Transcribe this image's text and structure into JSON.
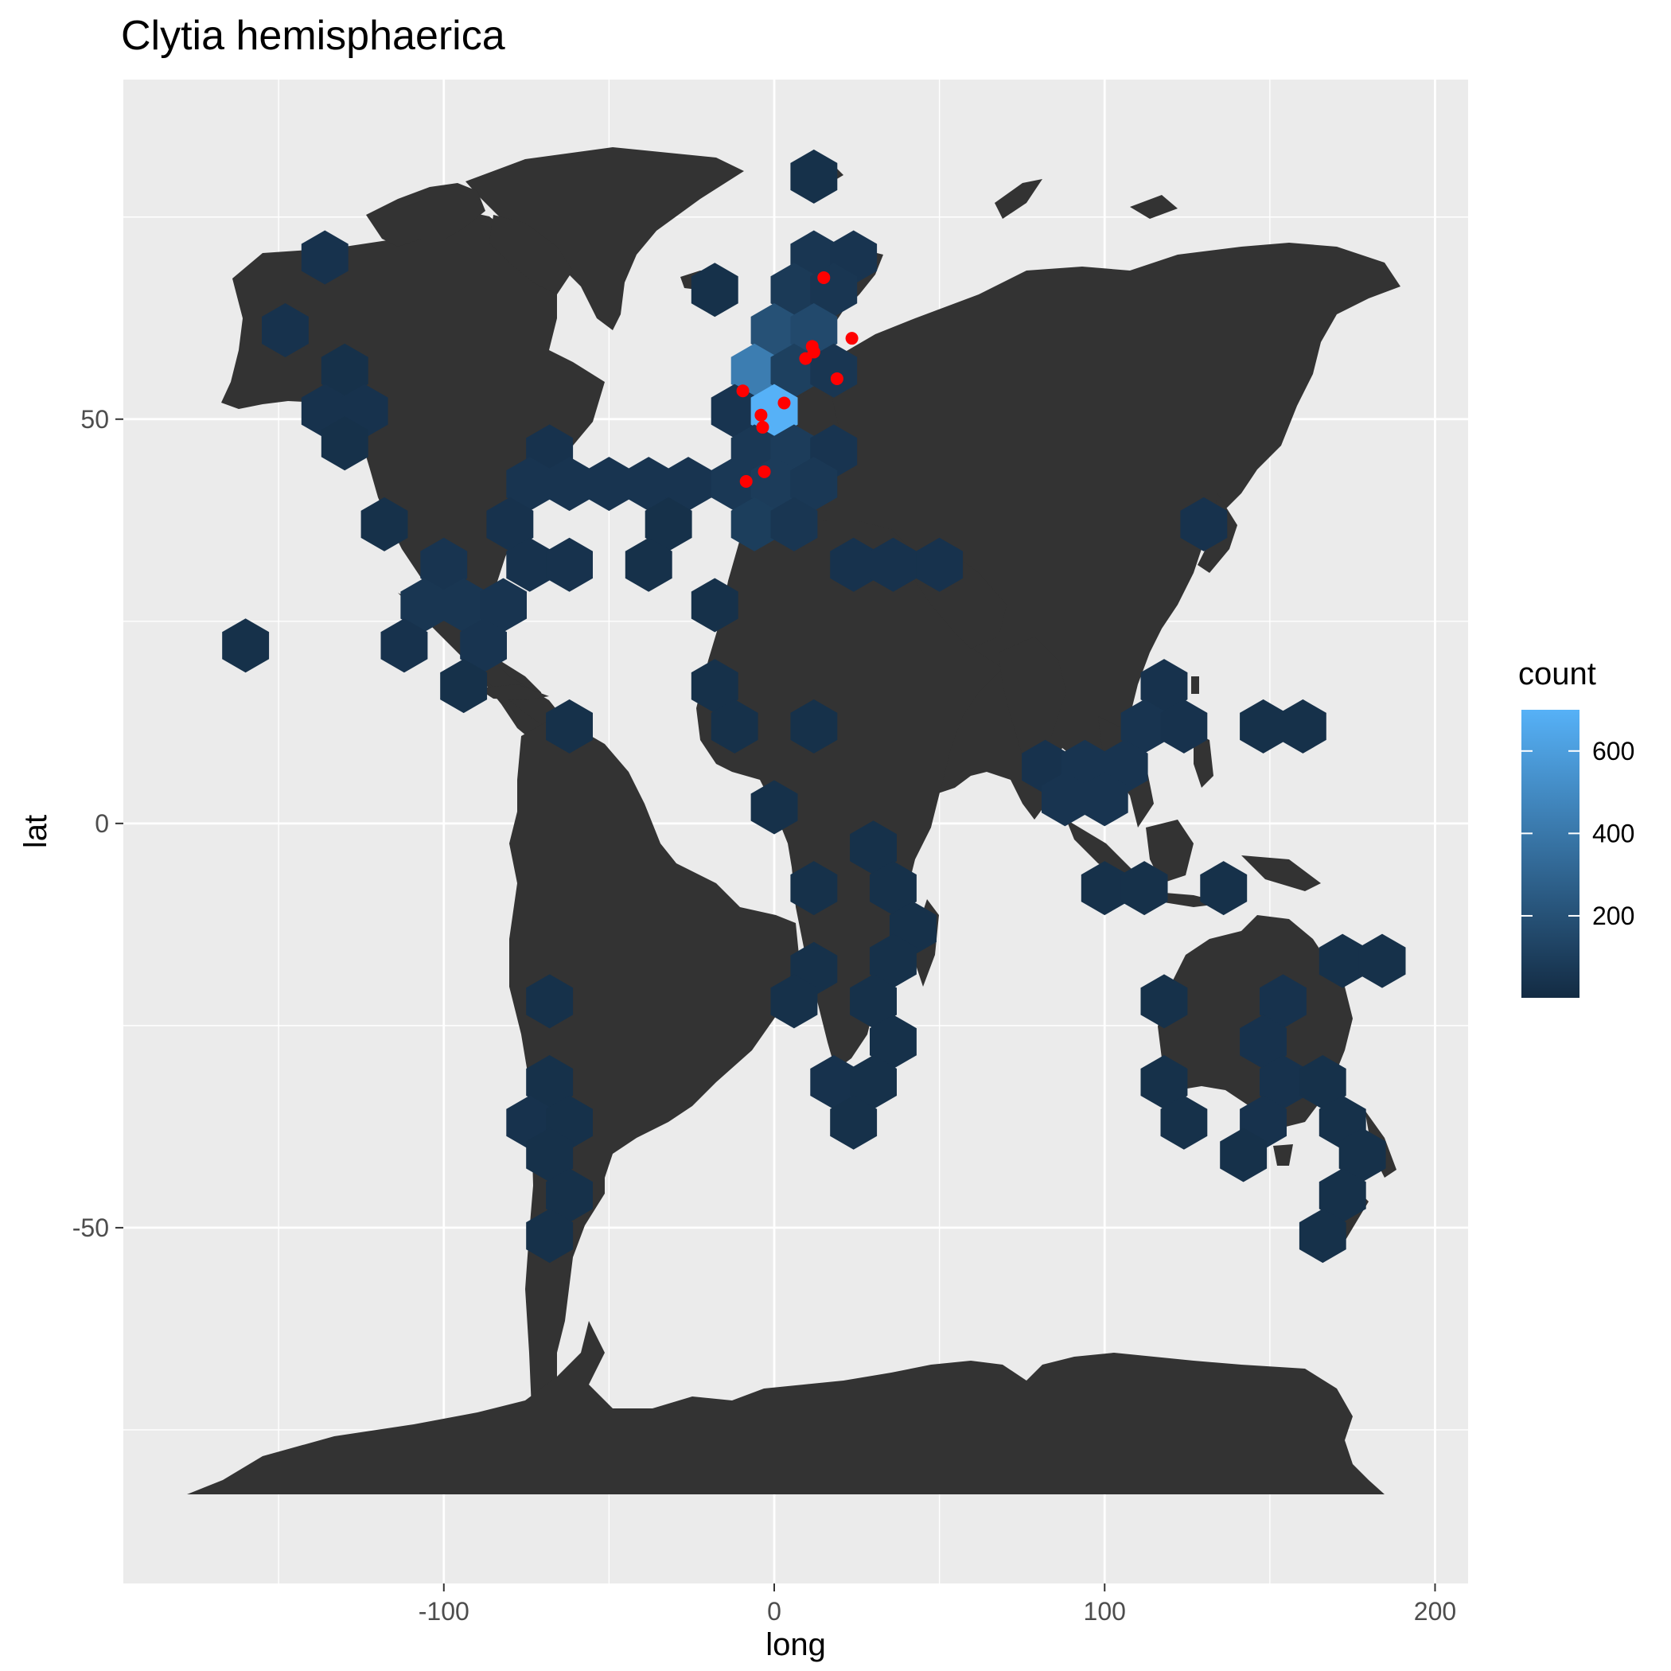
{
  "chart_data": {
    "type": "hexbin map",
    "title": "Clytia hemisphaerica",
    "xlabel": "long",
    "ylabel": "lat",
    "xlim": [
      -197,
      210
    ],
    "ylim": [
      -94,
      92
    ],
    "x_ticks": [
      -100,
      0,
      100,
      200
    ],
    "y_ticks": [
      -50,
      0,
      50
    ],
    "x_tick_labels": [
      "-100",
      "0",
      "100",
      "200"
    ],
    "y_tick_labels": [
      "-50",
      "0",
      "50"
    ],
    "grid": true,
    "legend": {
      "title": "count",
      "position": "right",
      "min": 1,
      "max": 700,
      "ticks": [
        200,
        400,
        600
      ],
      "tick_labels": [
        "200",
        "400",
        "600"
      ],
      "low_color": "#132B43",
      "high_color": "#56B1F7"
    },
    "colors": {
      "panel_background": "#EBEBEB",
      "grid": "#FFFFFF",
      "land": "#333333",
      "points": "#FF0000"
    },
    "hex_bins": [
      {
        "x": 12,
        "y": 80,
        "count": 30
      },
      {
        "x": -136,
        "y": 70,
        "count": 40
      },
      {
        "x": 12,
        "y": 70,
        "count": 60
      },
      {
        "x": 24,
        "y": 70,
        "count": 50
      },
      {
        "x": -18,
        "y": 66,
        "count": 30
      },
      {
        "x": 6,
        "y": 66,
        "count": 80
      },
      {
        "x": 18,
        "y": 66,
        "count": 60
      },
      {
        "x": -148,
        "y": 61,
        "count": 40
      },
      {
        "x": 0,
        "y": 61,
        "count": 200
      },
      {
        "x": 12,
        "y": 61,
        "count": 160
      },
      {
        "x": -130,
        "y": 56,
        "count": 30
      },
      {
        "x": -6,
        "y": 56,
        "count": 430
      },
      {
        "x": 6,
        "y": 56,
        "count": 110
      },
      {
        "x": 18,
        "y": 56,
        "count": 60
      },
      {
        "x": -136,
        "y": 51,
        "count": 40
      },
      {
        "x": -124,
        "y": 51,
        "count": 40
      },
      {
        "x": -12,
        "y": 51,
        "count": 50
      },
      {
        "x": 0,
        "y": 51,
        "count": 700
      },
      {
        "x": -130,
        "y": 47,
        "count": 30
      },
      {
        "x": -68,
        "y": 46,
        "count": 40
      },
      {
        "x": -6,
        "y": 46,
        "count": 70
      },
      {
        "x": 6,
        "y": 46,
        "count": 90
      },
      {
        "x": 18,
        "y": 46,
        "count": 50
      },
      {
        "x": -74,
        "y": 42,
        "count": 50
      },
      {
        "x": -62,
        "y": 42,
        "count": 50
      },
      {
        "x": -50,
        "y": 42,
        "count": 50
      },
      {
        "x": -38,
        "y": 42,
        "count": 50
      },
      {
        "x": -26,
        "y": 42,
        "count": 50
      },
      {
        "x": -12,
        "y": 42,
        "count": 70
      },
      {
        "x": 0,
        "y": 42,
        "count": 90
      },
      {
        "x": 12,
        "y": 42,
        "count": 70
      },
      {
        "x": -118,
        "y": 37,
        "count": 30
      },
      {
        "x": -80,
        "y": 37,
        "count": 40
      },
      {
        "x": -32,
        "y": 37,
        "count": 30
      },
      {
        "x": -6,
        "y": 37,
        "count": 100
      },
      {
        "x": 6,
        "y": 37,
        "count": 60
      },
      {
        "x": 130,
        "y": 37,
        "count": 40
      },
      {
        "x": -100,
        "y": 32,
        "count": 50
      },
      {
        "x": -74,
        "y": 32,
        "count": 40
      },
      {
        "x": -62,
        "y": 32,
        "count": 40
      },
      {
        "x": -38,
        "y": 32,
        "count": 30
      },
      {
        "x": 24,
        "y": 32,
        "count": 40
      },
      {
        "x": 36,
        "y": 32,
        "count": 40
      },
      {
        "x": 50,
        "y": 32,
        "count": 40
      },
      {
        "x": -106,
        "y": 27,
        "count": 60
      },
      {
        "x": -94,
        "y": 27,
        "count": 60
      },
      {
        "x": -82,
        "y": 27,
        "count": 50
      },
      {
        "x": -18,
        "y": 27,
        "count": 30
      },
      {
        "x": -112,
        "y": 22,
        "count": 40
      },
      {
        "x": -88,
        "y": 22,
        "count": 50
      },
      {
        "x": -160,
        "y": 22,
        "count": 30
      },
      {
        "x": -94,
        "y": 17,
        "count": 30
      },
      {
        "x": -18,
        "y": 17,
        "count": 30
      },
      {
        "x": 118,
        "y": 17,
        "count": 40
      },
      {
        "x": -62,
        "y": 12,
        "count": 30
      },
      {
        "x": -12,
        "y": 12,
        "count": 30
      },
      {
        "x": 12,
        "y": 12,
        "count": 30
      },
      {
        "x": 112,
        "y": 12,
        "count": 50
      },
      {
        "x": 124,
        "y": 12,
        "count": 40
      },
      {
        "x": 148,
        "y": 12,
        "count": 30
      },
      {
        "x": 160,
        "y": 12,
        "count": 30
      },
      {
        "x": 82,
        "y": 7,
        "count": 40
      },
      {
        "x": 94,
        "y": 7,
        "count": 50
      },
      {
        "x": 106,
        "y": 7,
        "count": 50
      },
      {
        "x": 0,
        "y": 2,
        "count": 30
      },
      {
        "x": 88,
        "y": 3,
        "count": 50
      },
      {
        "x": 100,
        "y": 3,
        "count": 50
      },
      {
        "x": 30,
        "y": -3,
        "count": 30
      },
      {
        "x": 12,
        "y": -8,
        "count": 30
      },
      {
        "x": 36,
        "y": -8,
        "count": 30
      },
      {
        "x": 100,
        "y": -8,
        "count": 30
      },
      {
        "x": 112,
        "y": -8,
        "count": 30
      },
      {
        "x": 136,
        "y": -8,
        "count": 30
      },
      {
        "x": 42,
        "y": -13,
        "count": 30
      },
      {
        "x": 12,
        "y": -18,
        "count": 30
      },
      {
        "x": 36,
        "y": -17,
        "count": 30
      },
      {
        "x": 172,
        "y": -17,
        "count": 30
      },
      {
        "x": 184,
        "y": -17,
        "count": 30
      },
      {
        "x": -68,
        "y": -22,
        "count": 30
      },
      {
        "x": 6,
        "y": -22,
        "count": 30
      },
      {
        "x": 30,
        "y": -22,
        "count": 30
      },
      {
        "x": 118,
        "y": -22,
        "count": 30
      },
      {
        "x": 154,
        "y": -22,
        "count": 40
      },
      {
        "x": 36,
        "y": -27,
        "count": 30
      },
      {
        "x": 148,
        "y": -27,
        "count": 40
      },
      {
        "x": -68,
        "y": -32,
        "count": 30
      },
      {
        "x": 18,
        "y": -32,
        "count": 40
      },
      {
        "x": 30,
        "y": -32,
        "count": 30
      },
      {
        "x": 118,
        "y": -32,
        "count": 30
      },
      {
        "x": 154,
        "y": -32,
        "count": 40
      },
      {
        "x": 166,
        "y": -32,
        "count": 30
      },
      {
        "x": -74,
        "y": -37,
        "count": 40
      },
      {
        "x": -62,
        "y": -37,
        "count": 30
      },
      {
        "x": 24,
        "y": -37,
        "count": 30
      },
      {
        "x": 124,
        "y": -37,
        "count": 30
      },
      {
        "x": 148,
        "y": -37,
        "count": 40
      },
      {
        "x": 172,
        "y": -37,
        "count": 30
      },
      {
        "x": -68,
        "y": -41,
        "count": 30
      },
      {
        "x": 142,
        "y": -41,
        "count": 30
      },
      {
        "x": 178,
        "y": -41,
        "count": 30
      },
      {
        "x": -62,
        "y": -46,
        "count": 30
      },
      {
        "x": 172,
        "y": -46,
        "count": 30
      },
      {
        "x": -68,
        "y": -51,
        "count": 30
      },
      {
        "x": 166,
        "y": -51,
        "count": 30
      }
    ],
    "points": [
      {
        "x": 15,
        "y": 67.5
      },
      {
        "x": 23.5,
        "y": 60
      },
      {
        "x": 11.5,
        "y": 59
      },
      {
        "x": 12,
        "y": 58.3
      },
      {
        "x": 9.5,
        "y": 57.5
      },
      {
        "x": 19,
        "y": 55
      },
      {
        "x": -9.5,
        "y": 53.5
      },
      {
        "x": 3,
        "y": 52
      },
      {
        "x": -4,
        "y": 50.5
      },
      {
        "x": -3.5,
        "y": 49
      },
      {
        "x": -3,
        "y": 43.5
      },
      {
        "x": -8.5,
        "y": 42.3
      }
    ]
  }
}
